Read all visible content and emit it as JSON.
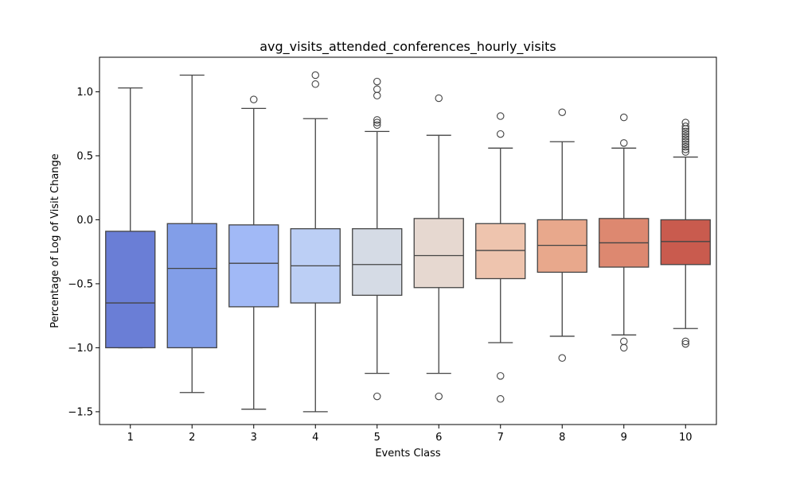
{
  "chart_data": {
    "type": "box",
    "title": "avg_visits_attended_conferences_hourly_visits",
    "xlabel": "Events Class",
    "ylabel": "Percentage of Log of Visit Change",
    "ylim": [
      -1.6,
      1.27
    ],
    "yticks": [
      {
        "value": 1.0,
        "label": "1.0"
      },
      {
        "value": 0.5,
        "label": "0.5"
      },
      {
        "value": 0.0,
        "label": "0.0"
      },
      {
        "value": -0.5,
        "label": "−0.5"
      },
      {
        "value": -1.0,
        "label": "−1.0"
      },
      {
        "value": -1.5,
        "label": "−1.5"
      }
    ],
    "grid": false,
    "categories": [
      "1",
      "2",
      "3",
      "4",
      "5",
      "6",
      "7",
      "8",
      "9",
      "10"
    ],
    "boxes": [
      {
        "category": "1",
        "whisker_low": -1.0,
        "q1": -1.0,
        "median": -0.65,
        "q3": -0.09,
        "whisker_high": 1.03,
        "outliers": [],
        "color": "#6a7ed6"
      },
      {
        "category": "2",
        "whisker_low": -1.35,
        "q1": -1.0,
        "median": -0.38,
        "q3": -0.03,
        "whisker_high": 1.13,
        "outliers": [],
        "color": "#829ee8"
      },
      {
        "category": "3",
        "whisker_low": -1.48,
        "q1": -0.68,
        "median": -0.34,
        "q3": -0.04,
        "whisker_high": 0.87,
        "outliers": [
          0.94
        ],
        "color": "#a1b9f6"
      },
      {
        "category": "4",
        "whisker_low": -1.5,
        "q1": -0.65,
        "median": -0.36,
        "q3": -0.07,
        "whisker_high": 0.79,
        "outliers": [
          1.13,
          1.06
        ],
        "color": "#bccff5"
      },
      {
        "category": "5",
        "whisker_low": -1.2,
        "q1": -0.59,
        "median": -0.35,
        "q3": -0.07,
        "whisker_high": 0.69,
        "outliers": [
          -1.38,
          1.08,
          1.02,
          0.97,
          0.78,
          0.76,
          0.74
        ],
        "color": "#d5dbe5"
      },
      {
        "category": "6",
        "whisker_low": -1.2,
        "q1": -0.53,
        "median": -0.28,
        "q3": 0.01,
        "whisker_high": 0.66,
        "outliers": [
          -1.38,
          0.95
        ],
        "color": "#e6d8d0"
      },
      {
        "category": "7",
        "whisker_low": -0.96,
        "q1": -0.46,
        "median": -0.24,
        "q3": -0.03,
        "whisker_high": 0.56,
        "outliers": [
          -1.22,
          -1.4,
          0.81,
          0.67
        ],
        "color": "#eec4ae"
      },
      {
        "category": "8",
        "whisker_low": -0.91,
        "q1": -0.41,
        "median": -0.2,
        "q3": 0.0,
        "whisker_high": 0.61,
        "outliers": [
          -1.08,
          0.84
        ],
        "color": "#e8a88c"
      },
      {
        "category": "9",
        "whisker_low": -0.9,
        "q1": -0.37,
        "median": -0.18,
        "q3": 0.01,
        "whisker_high": 0.56,
        "outliers": [
          -0.95,
          -1.0,
          0.8,
          0.6
        ],
        "color": "#dd8870"
      },
      {
        "category": "10",
        "whisker_low": -0.85,
        "q1": -0.35,
        "median": -0.17,
        "q3": 0.0,
        "whisker_high": 0.49,
        "outliers": [
          -0.95,
          -0.97,
          0.76,
          0.73,
          0.71,
          0.69,
          0.67,
          0.65,
          0.63,
          0.61,
          0.59,
          0.57,
          0.55,
          0.53
        ],
        "color": "#c95b4e"
      }
    ]
  }
}
